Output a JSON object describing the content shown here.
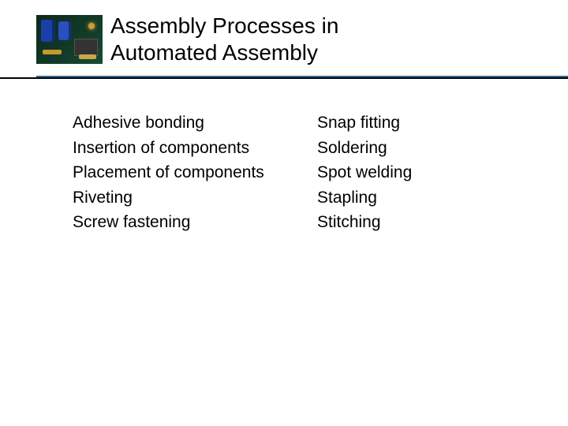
{
  "title_line1": "Assembly Processes in",
  "title_line2": "Automated Assembly",
  "colors": {
    "underline_blue": "#2a6aa0",
    "underline_black": "#000000",
    "thumb_bg_dark": "#0a2a1a",
    "thumb_bg_light": "#1a4a33"
  },
  "left_column": [
    "Adhesive bonding",
    "Insertion of components",
    "Placement of components",
    "Riveting",
    "Screw fastening"
  ],
  "right_column": [
    "Snap fitting",
    "Soldering",
    "Spot welding",
    "Stapling",
    "Stitching"
  ]
}
